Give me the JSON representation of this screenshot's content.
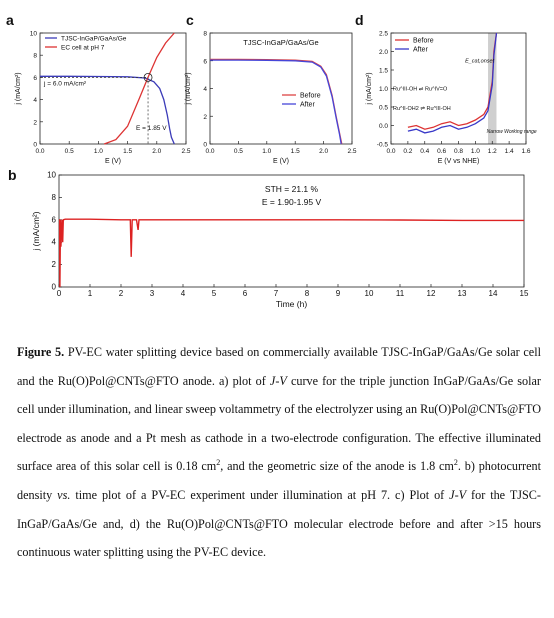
{
  "figure": {
    "panels": {
      "a": {
        "letter": "a"
      },
      "b": {
        "letter": "b"
      },
      "c": {
        "letter": "c"
      },
      "d": {
        "letter": "d"
      }
    }
  },
  "chart_data": [
    {
      "panel": "a",
      "type": "line",
      "xlabel": "E (V)",
      "ylabel": "j (mA/cm²)",
      "xlim": [
        0,
        2.5
      ],
      "ylim": [
        0,
        10
      ],
      "xticks": [
        "0.0",
        "0.5",
        "1.0",
        "1.5",
        "2.0",
        "2.5"
      ],
      "yticks": [
        "0",
        "2",
        "4",
        "6",
        "8",
        "10"
      ],
      "legend": [
        "TJSC-InGaP/GaAs/Ge",
        "EC cell at pH 7"
      ],
      "legend_position": "top-left",
      "annotations": [
        "j = 6.0 mA/cm²",
        "E = 1.85 V"
      ],
      "operating_point": {
        "x": 1.85,
        "y": 6.0
      },
      "series": [
        {
          "name": "TJSC-InGaP/GaAs/Ge",
          "color": "#3b3bb8",
          "x": [
            0,
            0.5,
            1.0,
            1.5,
            1.8,
            1.95,
            2.05,
            2.12,
            2.18,
            2.22,
            2.25,
            2.3
          ],
          "y": [
            6.1,
            6.1,
            6.08,
            6.05,
            5.95,
            5.6,
            5.0,
            4.0,
            2.6,
            1.4,
            0.6,
            0.0
          ]
        },
        {
          "name": "EC cell at pH 7",
          "color": "#d33",
          "x": [
            1.1,
            1.3,
            1.5,
            1.7,
            1.85,
            2.0,
            2.15,
            2.3
          ],
          "y": [
            0,
            0.4,
            1.6,
            4.1,
            6.0,
            7.8,
            9.1,
            10.0
          ]
        }
      ]
    },
    {
      "panel": "c",
      "type": "line",
      "title": "TJSC-InGaP/GaAs/Ge",
      "xlabel": "E (V)",
      "ylabel": "j (mA/cm²)",
      "xlim": [
        0,
        2.5
      ],
      "ylim": [
        0,
        8
      ],
      "xticks": [
        "0.0",
        "0.5",
        "1.0",
        "1.5",
        "2.0",
        "2.5"
      ],
      "yticks": [
        "0",
        "2",
        "4",
        "6",
        "8"
      ],
      "legend": [
        "Before",
        "After"
      ],
      "legend_position": "center-right",
      "series": [
        {
          "name": "Before",
          "color": "#d44",
          "x": [
            0,
            0.5,
            1.0,
            1.5,
            1.8,
            1.95,
            2.05,
            2.15,
            2.22,
            2.28,
            2.32
          ],
          "y": [
            6.1,
            6.1,
            6.08,
            6.05,
            5.95,
            5.6,
            5.0,
            3.5,
            2.0,
            0.8,
            0
          ]
        },
        {
          "name": "After",
          "color": "#4646d8",
          "x": [
            0,
            0.5,
            1.0,
            1.5,
            1.8,
            1.95,
            2.05,
            2.15,
            2.22,
            2.28,
            2.31
          ],
          "y": [
            6.05,
            6.05,
            6.03,
            6.0,
            5.9,
            5.55,
            4.9,
            3.4,
            1.9,
            0.7,
            0
          ]
        }
      ]
    },
    {
      "panel": "d",
      "type": "line",
      "xlabel": "E (V vs NHE)",
      "ylabel": "j (mA/cm²)",
      "xlim": [
        0,
        1.6
      ],
      "ylim": [
        -0.5,
        2.5
      ],
      "xticks": [
        "0.0",
        "0.2",
        "0.4",
        "0.6",
        "0.8",
        "1.0",
        "1.2",
        "1.4",
        "1.6"
      ],
      "yticks": [
        "-0.5",
        "0.0",
        "0.5",
        "1.0",
        "1.5",
        "2.0",
        "2.5"
      ],
      "legend": [
        "Before",
        "After"
      ],
      "legend_position": "top-left",
      "annotations": [
        "E_cat,onset",
        "Ru^III-OH ⇌ Ru^IV=O",
        "Ru^II-OH2 ⇌ Ru^III-OH",
        "Narrow Working range"
      ],
      "shaded_range": [
        1.15,
        1.25
      ],
      "series": [
        {
          "name": "Before",
          "color": "#d33",
          "x": [
            0.2,
            0.3,
            0.4,
            0.5,
            0.6,
            0.7,
            0.8,
            0.9,
            1.0,
            1.1,
            1.15,
            1.2,
            1.22,
            1.25
          ],
          "y": [
            -0.05,
            0.0,
            -0.1,
            -0.05,
            0.05,
            0.1,
            0.0,
            0.05,
            0.15,
            0.3,
            0.5,
            1.2,
            2.0,
            2.5
          ]
        },
        {
          "name": "After",
          "color": "#3838c8",
          "x": [
            0.2,
            0.3,
            0.4,
            0.5,
            0.6,
            0.7,
            0.8,
            0.9,
            1.0,
            1.1,
            1.15,
            1.2,
            1.22,
            1.25
          ],
          "y": [
            -0.15,
            -0.1,
            -0.2,
            -0.15,
            -0.05,
            0.0,
            -0.1,
            -0.05,
            0.05,
            0.2,
            0.4,
            1.1,
            1.9,
            2.5
          ]
        }
      ]
    },
    {
      "panel": "b",
      "type": "line",
      "xlabel": "Time (h)",
      "ylabel": "j (mA/cm²)",
      "xlim": [
        0,
        15
      ],
      "ylim": [
        0,
        10
      ],
      "xticks": [
        "0",
        "1",
        "2",
        "3",
        "4",
        "5",
        "6",
        "7",
        "8",
        "9",
        "10",
        "11",
        "12",
        "13",
        "14",
        "15"
      ],
      "yticks": [
        "0",
        "2",
        "4",
        "6",
        "8",
        "10"
      ],
      "annotations": [
        "STH = 21.1 %",
        "E = 1.90-1.95 V"
      ],
      "series": [
        {
          "name": "",
          "color": "#d22",
          "x": [
            0,
            0.02,
            0.03,
            0.05,
            0.06,
            0.1,
            0.12,
            0.14,
            0.2,
            1,
            2,
            2.3,
            2.33,
            2.36,
            2.5,
            2.55,
            2.58,
            3,
            5,
            7,
            9,
            11,
            13,
            14,
            15
          ],
          "y": [
            6.0,
            6.0,
            0,
            6.0,
            3.6,
            6.0,
            4.0,
            6.0,
            6.05,
            6.05,
            6.0,
            6.0,
            2.7,
            6.0,
            6.0,
            5.1,
            6.0,
            6.0,
            6.0,
            6.0,
            6.0,
            5.98,
            5.95,
            5.95,
            5.95
          ]
        }
      ]
    }
  ],
  "caption": {
    "label": "Figure 5.",
    "p1": "PV-EC water splitting device based on commercially available TJSC-InGaP/GaAs/Ge solar cell and the Ru(O)Pol@CNTs@FTO anode. a) plot of ",
    "jv": "J-V",
    "p2": " curve for the triple junction InGaP/GaAs/Ge solar cell under illumination, and linear sweep voltammetry of the electrolyzer using an Ru(O)Pol@CNTs@FTO electrode as anode and a Pt mesh as cathode in a two-electrode configuration. The effective illuminated surface area of this solar cell is 0.18 cm",
    "sq1": "2",
    "p3": ", and the geometric size of the anode is 1.8 cm",
    "sq2": "2",
    "p4": ". b) photocurrent density ",
    "vs": "vs.",
    "p5": " time plot of a PV-EC experiment under illumination at pH 7. c) Plot of ",
    "jv2": "J-V",
    "p6": " for the TJSC-InGaP/GaAs/Ge and, d) the Ru(O)Pol@CNTs@FTO molecular electrode before and after >15 hours continuous water splitting using the PV-EC device."
  }
}
